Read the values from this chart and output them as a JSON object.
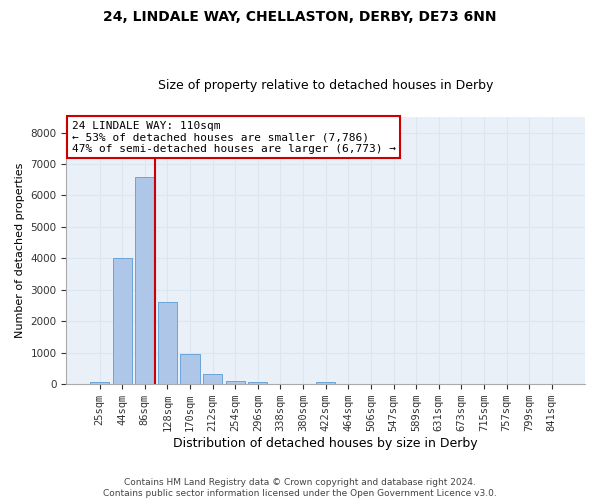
{
  "title1": "24, LINDALE WAY, CHELLASTON, DERBY, DE73 6NN",
  "title2": "Size of property relative to detached houses in Derby",
  "xlabel": "Distribution of detached houses by size in Derby",
  "ylabel": "Number of detached properties",
  "footer1": "Contains HM Land Registry data © Crown copyright and database right 2024.",
  "footer2": "Contains public sector information licensed under the Open Government Licence v3.0.",
  "bar_labels": [
    "25sqm",
    "44sqm",
    "86sqm",
    "128sqm",
    "170sqm",
    "212sqm",
    "254sqm",
    "296sqm",
    "338sqm",
    "380sqm",
    "422sqm",
    "464sqm",
    "506sqm",
    "547sqm",
    "589sqm",
    "631sqm",
    "673sqm",
    "715sqm",
    "757sqm",
    "799sqm",
    "841sqm"
  ],
  "bar_values": [
    80,
    4000,
    6600,
    2620,
    950,
    330,
    110,
    60,
    0,
    0,
    60,
    0,
    0,
    0,
    0,
    0,
    0,
    0,
    0,
    0,
    0
  ],
  "bar_color": "#aec6e8",
  "bar_edge_color": "#5b9bd5",
  "grid_color": "#dce6f1",
  "bg_color": "#eaf0f8",
  "vline_color": "#cc0000",
  "annotation_text": "24 LINDALE WAY: 110sqm\n← 53% of detached houses are smaller (7,786)\n47% of semi-detached houses are larger (6,773) →",
  "annotation_box_color": "#cc0000",
  "ylim": [
    0,
    8500
  ],
  "yticks": [
    0,
    1000,
    2000,
    3000,
    4000,
    5000,
    6000,
    7000,
    8000
  ],
  "title1_fontsize": 10,
  "title2_fontsize": 9,
  "xlabel_fontsize": 9,
  "ylabel_fontsize": 8,
  "tick_fontsize": 7.5,
  "annotation_fontsize": 8,
  "footer_fontsize": 6.5
}
